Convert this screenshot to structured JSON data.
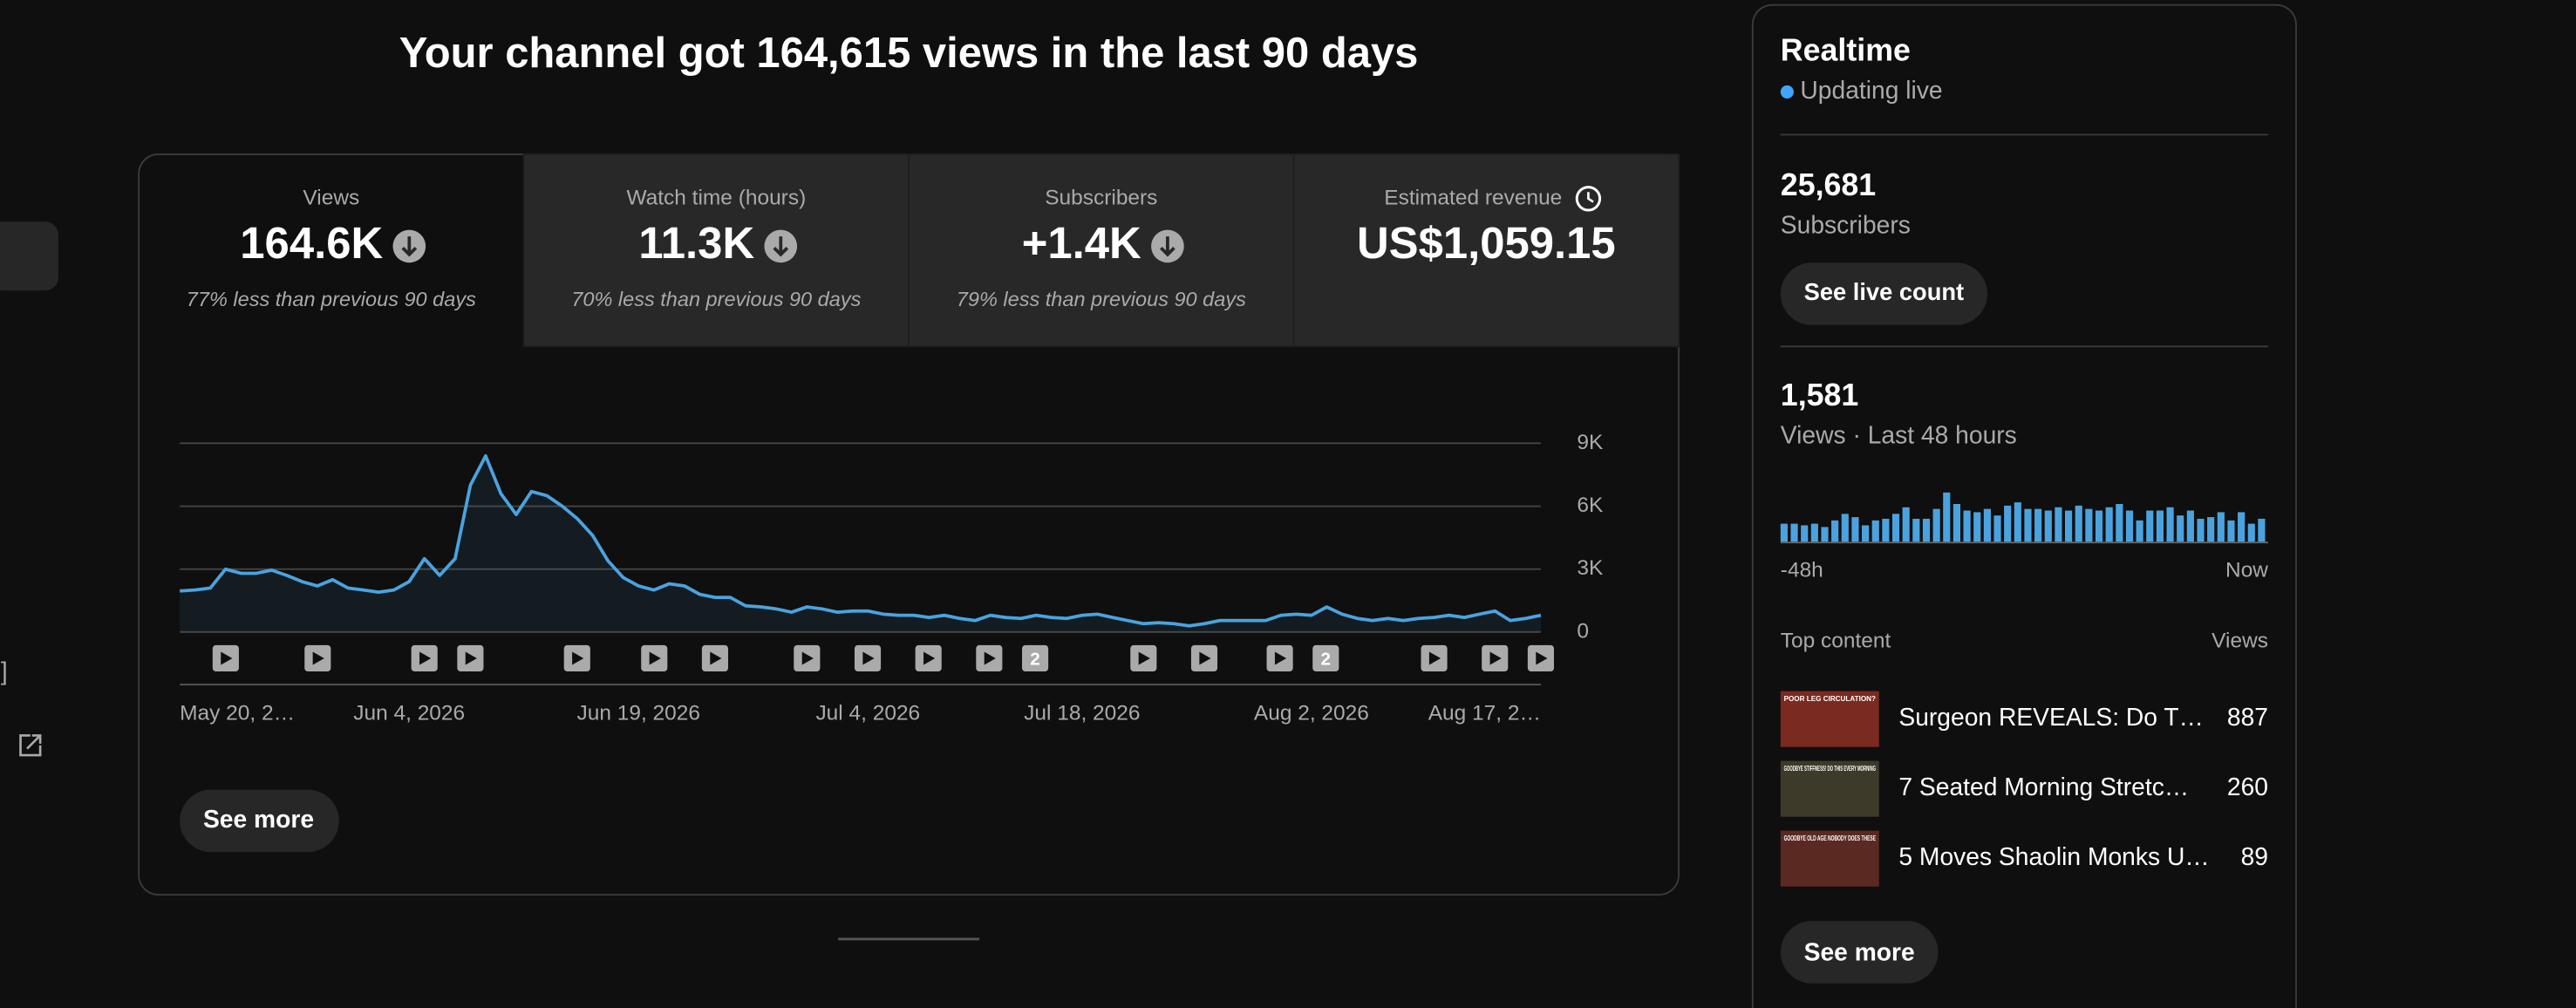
{
  "header": {
    "title": "Your channel got 164,615 views in the last 90 days"
  },
  "tabs": [
    {
      "label": "Views",
      "value": "164.6K",
      "note": "77% less than previous 90 days"
    },
    {
      "label": "Watch time (hours)",
      "value": "11.3K",
      "note": "70% less than previous 90 days"
    },
    {
      "label": "Subscribers",
      "value": "+1.4K",
      "note": "79% less than previous 90 days"
    },
    {
      "label": "Estimated revenue",
      "value": "US$1,059.15"
    }
  ],
  "views_chart": {
    "type": "line",
    "color": "#4aa3df",
    "categories": [
      "May 20, 2…",
      null,
      null,
      null,
      null,
      null,
      null,
      null,
      null,
      null,
      null,
      null,
      null,
      null,
      null,
      "Jun 4, 2026",
      null,
      null,
      null,
      null,
      null,
      null,
      null,
      null,
      null,
      null,
      null,
      null,
      null,
      null,
      "Jun 19, 2026",
      null,
      null,
      null,
      null,
      null,
      null,
      null,
      null,
      null,
      null,
      null,
      null,
      null,
      null,
      "Jul 4, 2026",
      null,
      null,
      null,
      null,
      null,
      null,
      null,
      null,
      null,
      null,
      null,
      null,
      null,
      "Jul 18, 2026",
      null,
      null,
      null,
      null,
      null,
      null,
      null,
      null,
      null,
      null,
      null,
      null,
      null,
      null,
      "Aug 2, 2026",
      null,
      null,
      null,
      null,
      null,
      null,
      null,
      null,
      null,
      null,
      null,
      null,
      null,
      null,
      "Aug 17, 2…"
    ],
    "values": [
      1960,
      2000,
      2100,
      3000,
      2800,
      2800,
      2950,
      2700,
      2400,
      2200,
      2500,
      2100,
      2000,
      1900,
      2000,
      2400,
      3500,
      2700,
      3500,
      7000,
      8400,
      6600,
      5600,
      6700,
      6500,
      6000,
      5400,
      4600,
      3400,
      2600,
      2200,
      2000,
      2300,
      2200,
      1800,
      1650,
      1650,
      1250,
      1200,
      1100,
      950,
      1200,
      1100,
      950,
      1000,
      1000,
      850,
      800,
      800,
      700,
      800,
      650,
      550,
      800,
      700,
      650,
      800,
      700,
      650,
      800,
      850,
      700,
      550,
      400,
      450,
      400,
      300,
      400,
      550,
      550,
      550,
      550,
      800,
      850,
      800,
      1200,
      850,
      650,
      550,
      650,
      550,
      650,
      700,
      800,
      700,
      850,
      1000,
      550,
      650,
      800
    ],
    "ylim": [
      0,
      9000
    ],
    "yticks": [
      {
        "value": 0,
        "label": "0"
      },
      {
        "value": 3000,
        "label": "3K"
      },
      {
        "value": 6000,
        "label": "6K"
      },
      {
        "value": 9000,
        "label": "9K"
      }
    ],
    "grid": true,
    "marker_badges": [
      "2",
      "2"
    ]
  },
  "see_more": "See more",
  "realtime": {
    "title": "Realtime",
    "status": "Updating live",
    "subscribers_value": "25,681",
    "subscribers_label": "Subscribers",
    "live_count_button": "See live count",
    "views_value": "1,581",
    "views_label": "Views · Last 48 hours",
    "views_chart": {
      "type": "bar",
      "color": "#4aa3df",
      "values": [
        22,
        22,
        20,
        22,
        18,
        26,
        34,
        30,
        20,
        26,
        28,
        34,
        42,
        28,
        28,
        40,
        60,
        46,
        38,
        36,
        40,
        32,
        44,
        48,
        40,
        40,
        38,
        42,
        38,
        44,
        40,
        38,
        42,
        46,
        38,
        26,
        38,
        38,
        42,
        32,
        38,
        28,
        30,
        36,
        26,
        36,
        22,
        28
      ],
      "start_label": "-48h",
      "end_label": "Now"
    },
    "top_content_label": "Top content",
    "top_content_views_label": "Views",
    "top_content": [
      {
        "thumbnail_text": "POOR LEG CIRCULATION?",
        "title": "Surgeon REVEALS: Do T…",
        "views": "887"
      },
      {
        "thumbnail_text": "GOODBYE STIFFNESS! DO THIS EVERY MORNING",
        "title": "7 Seated Morning Stretc…",
        "views": "260"
      },
      {
        "thumbnail_text": "GOODBYE OLD AGE NOBODY DOES THESE",
        "title": "5 Moves Shaolin Monks U…",
        "views": "89"
      }
    ],
    "see_more": "See more"
  },
  "sidebar": {
    "fragment": "]"
  }
}
